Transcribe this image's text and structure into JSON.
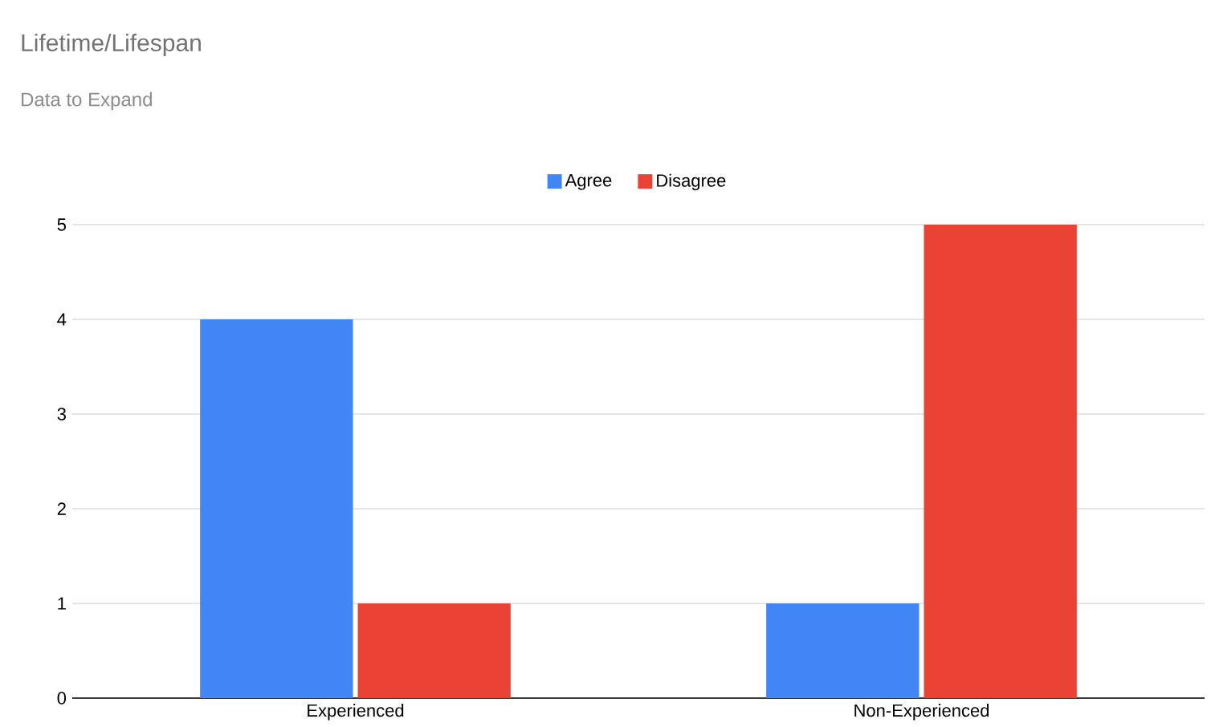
{
  "chart_data": {
    "type": "bar",
    "title": "Lifetime/Lifespan",
    "subtitle": "Data to Expand",
    "categories": [
      "Experienced",
      "Non-Experienced"
    ],
    "series": [
      {
        "name": "Agree",
        "color": "#4285f4",
        "values": [
          4,
          1
        ]
      },
      {
        "name": "Disagree",
        "color": "#ea4335",
        "values": [
          1,
          5
        ]
      }
    ],
    "ylim": [
      0,
      5
    ],
    "yticks": [
      0,
      1,
      2,
      3,
      4,
      5
    ],
    "grid": "y",
    "legend": "top"
  }
}
